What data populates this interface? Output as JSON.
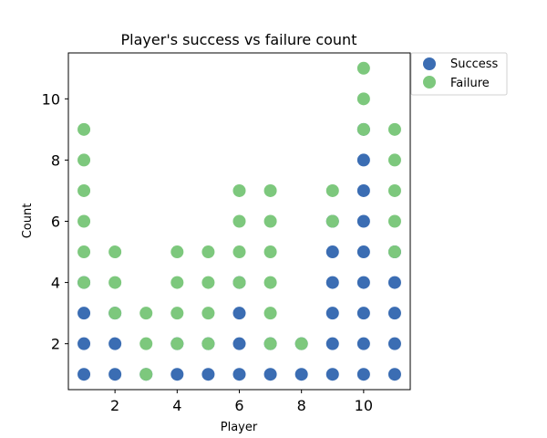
{
  "chart_data": {
    "type": "scatter",
    "title": "Player's success vs failure count",
    "xlabel": "Player",
    "ylabel": "Count",
    "xlim": [
      0.5,
      11.5
    ],
    "ylim": [
      0.5,
      11.5
    ],
    "xticks": [
      2,
      4,
      6,
      8,
      10
    ],
    "yticks": [
      2,
      4,
      6,
      8,
      10
    ],
    "grid": false,
    "legend_position": "outside top-right",
    "series": [
      {
        "name": "Success",
        "color": "#3b6db3",
        "points": [
          [
            1,
            1
          ],
          [
            1,
            2
          ],
          [
            1,
            3
          ],
          [
            1,
            4
          ],
          [
            2,
            1
          ],
          [
            2,
            2
          ],
          [
            2,
            3
          ],
          [
            3,
            1
          ],
          [
            4,
            1
          ],
          [
            4,
            2
          ],
          [
            5,
            1
          ],
          [
            5,
            2
          ],
          [
            6,
            1
          ],
          [
            6,
            2
          ],
          [
            6,
            3
          ],
          [
            6,
            4
          ],
          [
            7,
            1
          ],
          [
            7,
            2
          ],
          [
            8,
            1
          ],
          [
            8,
            2
          ],
          [
            9,
            1
          ],
          [
            9,
            2
          ],
          [
            9,
            3
          ],
          [
            9,
            4
          ],
          [
            9,
            5
          ],
          [
            9,
            6
          ],
          [
            10,
            1
          ],
          [
            10,
            2
          ],
          [
            10,
            3
          ],
          [
            10,
            4
          ],
          [
            10,
            5
          ],
          [
            10,
            6
          ],
          [
            10,
            7
          ],
          [
            10,
            8
          ],
          [
            10,
            9
          ],
          [
            11,
            1
          ],
          [
            11,
            2
          ],
          [
            11,
            3
          ],
          [
            11,
            4
          ],
          [
            11,
            5
          ]
        ]
      },
      {
        "name": "Failure",
        "color": "#7dc87d",
        "points": [
          [
            1,
            4
          ],
          [
            1,
            5
          ],
          [
            1,
            6
          ],
          [
            1,
            7
          ],
          [
            1,
            8
          ],
          [
            1,
            9
          ],
          [
            2,
            3
          ],
          [
            2,
            4
          ],
          [
            2,
            5
          ],
          [
            3,
            1
          ],
          [
            3,
            2
          ],
          [
            3,
            3
          ],
          [
            4,
            2
          ],
          [
            4,
            3
          ],
          [
            4,
            4
          ],
          [
            4,
            5
          ],
          [
            5,
            2
          ],
          [
            5,
            3
          ],
          [
            5,
            4
          ],
          [
            5,
            5
          ],
          [
            6,
            4
          ],
          [
            6,
            5
          ],
          [
            6,
            6
          ],
          [
            6,
            7
          ],
          [
            7,
            2
          ],
          [
            7,
            3
          ],
          [
            7,
            4
          ],
          [
            7,
            5
          ],
          [
            7,
            6
          ],
          [
            7,
            7
          ],
          [
            8,
            2
          ],
          [
            9,
            6
          ],
          [
            9,
            7
          ],
          [
            10,
            9
          ],
          [
            10,
            10
          ],
          [
            10,
            11
          ],
          [
            11,
            5
          ],
          [
            11,
            6
          ],
          [
            11,
            7
          ],
          [
            11,
            8
          ],
          [
            11,
            9
          ]
        ]
      }
    ]
  }
}
